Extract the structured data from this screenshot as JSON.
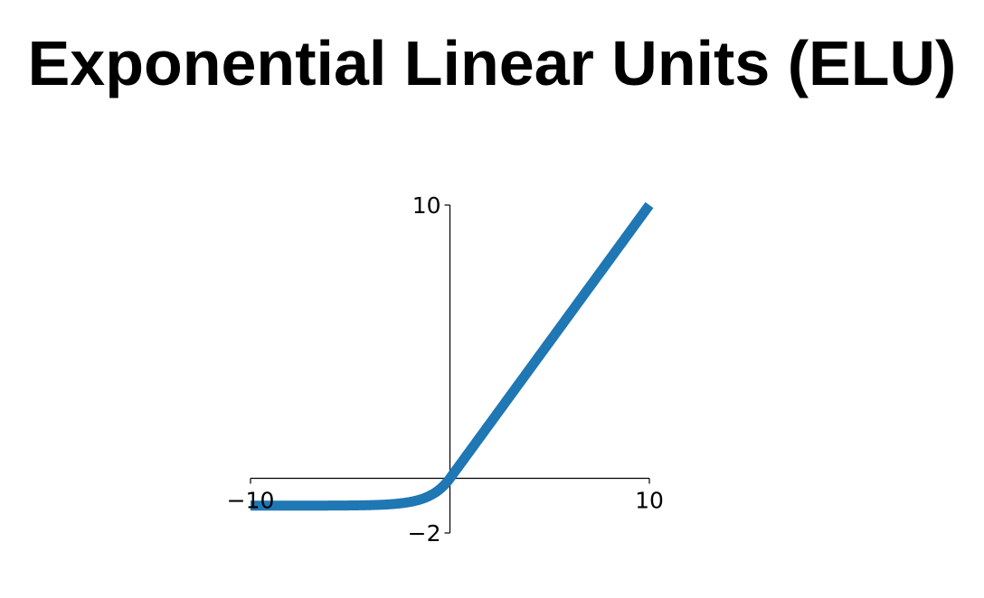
{
  "slide": {
    "title": "Exponential Linear Units (ELU)"
  },
  "colors": {
    "series": "#1f77b4",
    "axis": "#000000",
    "background": "#ffffff"
  },
  "chart_data": {
    "type": "line",
    "title": "",
    "xlabel": "",
    "ylabel": "",
    "function": "elu",
    "alpha": 1,
    "xlim": [
      -10,
      10
    ],
    "ylim": [
      -2,
      10
    ],
    "grid": false,
    "spines": "centered",
    "x_ticks": [
      {
        "value": -10,
        "label": "−10"
      },
      {
        "value": 10,
        "label": "10"
      }
    ],
    "y_ticks": [
      {
        "value": 10,
        "label": "10"
      },
      {
        "value": -2,
        "label": "−2"
      }
    ],
    "series": [
      {
        "x": [
          -10,
          -8,
          -6,
          -5,
          -4,
          -3,
          -2.5,
          -2,
          -1.5,
          -1,
          -0.75,
          -0.5,
          -0.25,
          0,
          2,
          4,
          6,
          8,
          10
        ],
        "y": [
          -1.0,
          -0.9997,
          -0.9975,
          -0.9933,
          -0.9817,
          -0.9502,
          -0.9179,
          -0.8647,
          -0.7769,
          -0.6321,
          -0.5276,
          -0.3935,
          -0.2212,
          0,
          2,
          4,
          6,
          8,
          10
        ]
      }
    ]
  }
}
